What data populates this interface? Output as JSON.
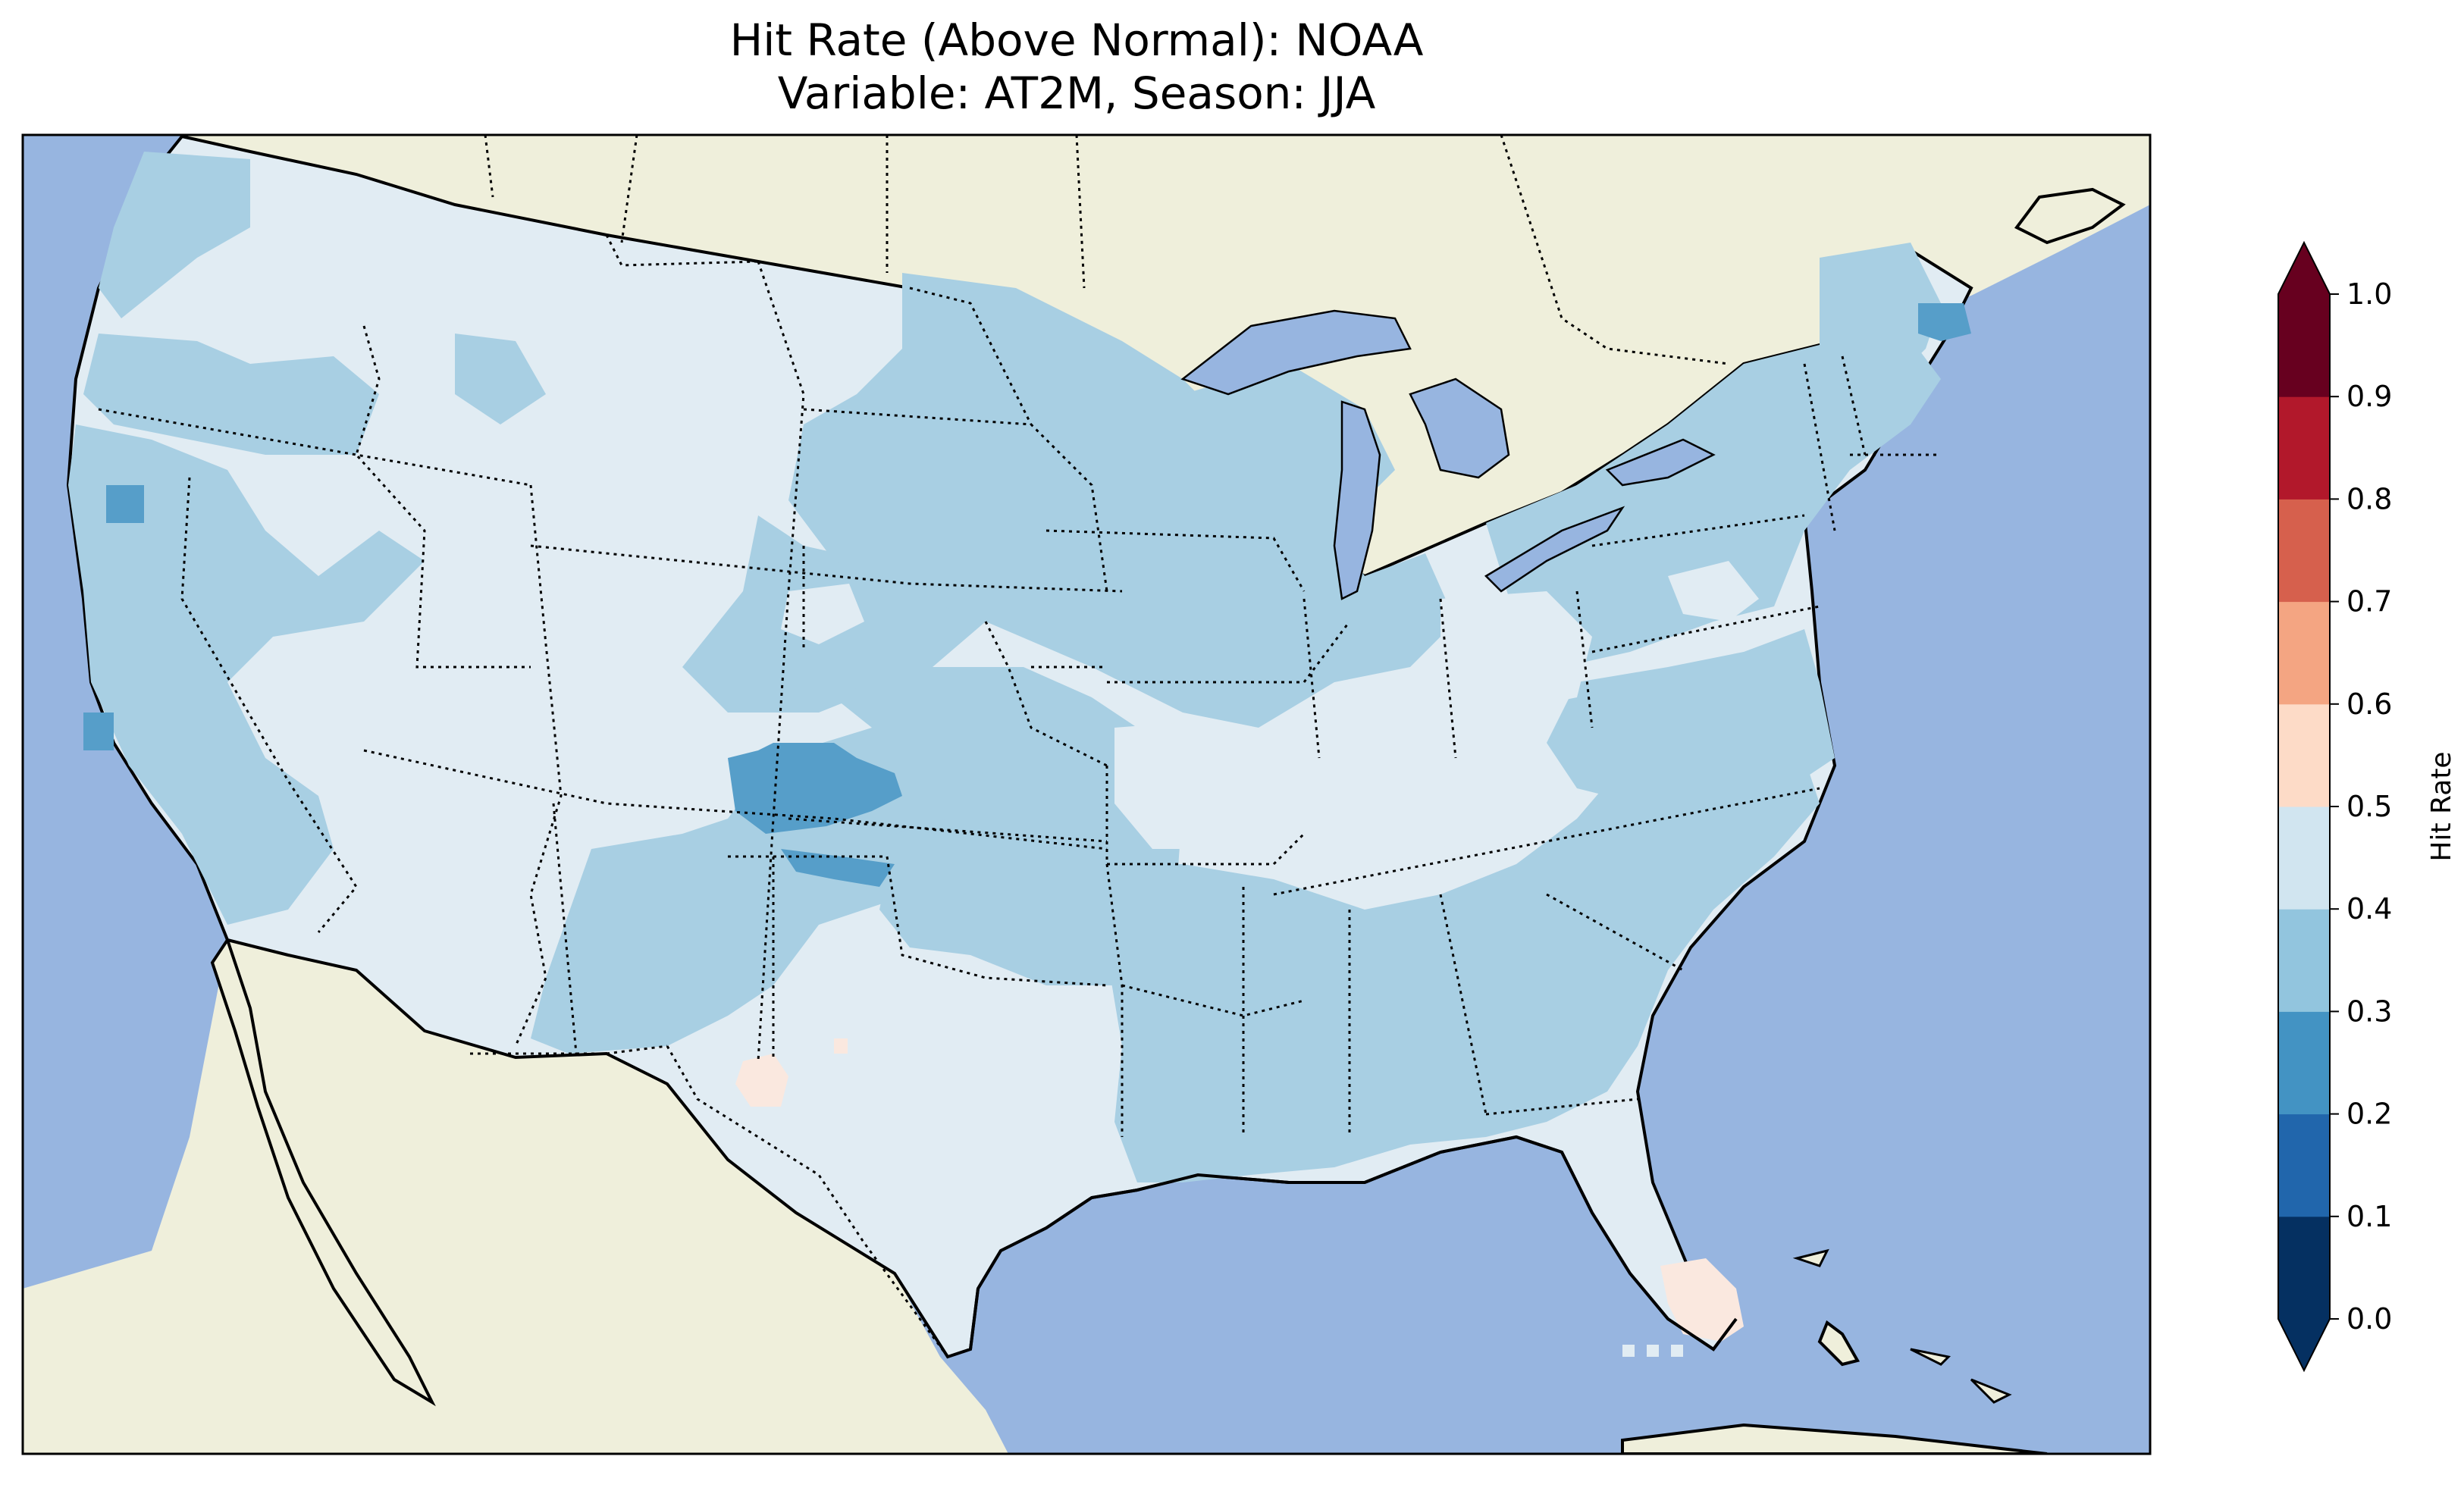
{
  "title": {
    "line1": "Hit Rate (Above Normal): NOAA",
    "line2": "Variable: AT2M, Season: JJA"
  },
  "colors": {
    "ocean": "#97b5e0",
    "land": "#efefdb",
    "background": "#ffffff"
  },
  "colorbar": {
    "label": "Hit Rate",
    "ticks": [
      "0.0",
      "0.1",
      "0.2",
      "0.3",
      "0.4",
      "0.5",
      "0.6",
      "0.7",
      "0.8",
      "0.9",
      "1.0"
    ],
    "colors": [
      "#053061",
      "#2166ac",
      "#4393c3",
      "#92c5de",
      "#d1e5f0",
      "#fddbc7",
      "#f4a582",
      "#d6604d",
      "#b2182b",
      "#67001f"
    ],
    "extend": "both"
  },
  "map": {
    "region": "Contiguous United States",
    "field_colors": {
      "0.4-0.5": "#e1ecf3",
      "0.3-0.4": "#a8cfe3",
      "0.2-0.3": "#569ec9",
      "0.5-0.6": "#fae8df"
    }
  }
}
